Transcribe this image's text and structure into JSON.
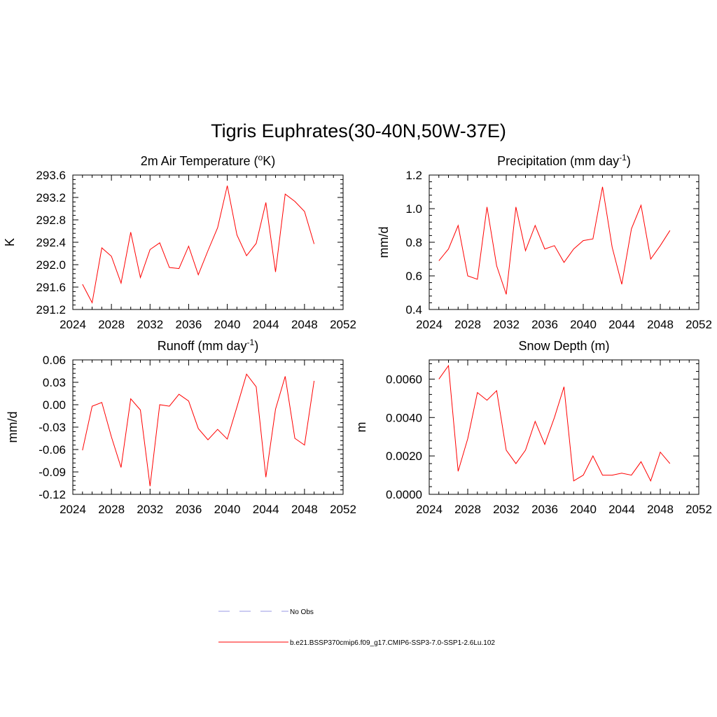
{
  "title": "Tigris Euphrates(30-40N,50W-37E)",
  "legend": [
    {
      "label": "No Obs",
      "color": "#9a9ae6",
      "dash": true
    },
    {
      "label": "b.e21.BSSP370cmip6.f09_g17.CMIP6-SSP3-7.0-SSP1-2.6Lu.102",
      "color": "#ff0000",
      "dash": false
    }
  ],
  "chart_data": [
    {
      "type": "line",
      "title": {
        "pre": "2m Air Temperature (",
        "sup": "o",
        "post": "K)"
      },
      "ylabel": "K",
      "xlim": [
        2024,
        2052
      ],
      "ylim": [
        291.2,
        293.6
      ],
      "xticks": [
        "2024",
        "2028",
        "2032",
        "2036",
        "2040",
        "2044",
        "2048",
        "2052"
      ],
      "yticks": [
        "291.2",
        "291.6",
        "292.0",
        "292.4",
        "292.8",
        "293.2",
        "293.6"
      ],
      "series": [
        {
          "color": "#ff0000",
          "x": [
            2025,
            2026,
            2027,
            2028,
            2029,
            2030,
            2031,
            2032,
            2033,
            2034,
            2035,
            2036,
            2037,
            2038,
            2039,
            2040,
            2041,
            2042,
            2043,
            2044,
            2045,
            2046,
            2047,
            2048,
            2049
          ],
          "y": [
            291.65,
            291.32,
            292.3,
            292.15,
            291.67,
            292.58,
            291.77,
            292.27,
            292.39,
            291.95,
            291.93,
            292.33,
            291.82,
            292.25,
            292.66,
            293.41,
            292.53,
            292.16,
            292.38,
            293.11,
            291.87,
            293.26,
            293.13,
            292.95,
            292.37
          ]
        }
      ]
    },
    {
      "type": "line",
      "title": {
        "pre": "Precipitation (mm day",
        "sup": "-1",
        "post": ")"
      },
      "ylabel": "mm/d",
      "xlim": [
        2024,
        2052
      ],
      "ylim": [
        0.4,
        1.2
      ],
      "xticks": [
        "2024",
        "2028",
        "2032",
        "2036",
        "2040",
        "2044",
        "2048",
        "2052"
      ],
      "yticks": [
        "0.4",
        "0.6",
        "0.8",
        "1.0",
        "1.2"
      ],
      "series": [
        {
          "color": "#ff0000",
          "x": [
            2025,
            2026,
            2027,
            2028,
            2029,
            2030,
            2031,
            2032,
            2033,
            2034,
            2035,
            2036,
            2037,
            2038,
            2039,
            2040,
            2041,
            2042,
            2043,
            2044,
            2045,
            2046,
            2047,
            2048,
            2049
          ],
          "y": [
            0.69,
            0.76,
            0.9,
            0.6,
            0.58,
            1.01,
            0.66,
            0.49,
            1.01,
            0.75,
            0.9,
            0.76,
            0.78,
            0.68,
            0.76,
            0.81,
            0.82,
            1.13,
            0.77,
            0.55,
            0.88,
            1.02,
            0.7,
            0.78,
            0.87
          ]
        }
      ]
    },
    {
      "type": "line",
      "title": {
        "pre": "Runoff (mm day",
        "sup": "-1",
        "post": ")"
      },
      "ylabel": "mm/d",
      "xlim": [
        2024,
        2052
      ],
      "ylim": [
        -0.12,
        0.06
      ],
      "xticks": [
        "2024",
        "2028",
        "2032",
        "2036",
        "2040",
        "2044",
        "2048",
        "2052"
      ],
      "yticks": [
        "-0.12",
        "-0.09",
        "-0.06",
        "-0.03",
        "0.00",
        "0.03",
        "0.06"
      ],
      "series": [
        {
          "color": "#ff0000",
          "x": [
            2025,
            2026,
            2027,
            2028,
            2029,
            2030,
            2031,
            2032,
            2033,
            2034,
            2035,
            2036,
            2037,
            2038,
            2039,
            2040,
            2041,
            2042,
            2043,
            2044,
            2045,
            2046,
            2047,
            2048,
            2049
          ],
          "y": [
            -0.061,
            -0.002,
            0.003,
            -0.043,
            -0.084,
            0.008,
            -0.007,
            -0.109,
            0.0,
            -0.002,
            0.014,
            0.005,
            -0.032,
            -0.047,
            -0.033,
            -0.046,
            -0.003,
            0.041,
            0.024,
            -0.097,
            -0.006,
            0.038,
            -0.045,
            -0.054,
            0.032
          ]
        }
      ]
    },
    {
      "type": "line",
      "title": {
        "pre": "Snow Depth (m)",
        "sup": "",
        "post": ""
      },
      "ylabel": "m",
      "xlim": [
        2024,
        2052
      ],
      "ylim": [
        0,
        0.007
      ],
      "xticks": [
        "2024",
        "2028",
        "2032",
        "2036",
        "2040",
        "2044",
        "2048",
        "2052"
      ],
      "yticks": [
        "0.0000",
        "0.0020",
        "0.0040",
        "0.0060"
      ],
      "ytick_values": [
        0,
        0.002,
        0.004,
        0.006
      ],
      "series": [
        {
          "color": "#ff0000",
          "x": [
            2025,
            2026,
            2027,
            2028,
            2029,
            2030,
            2031,
            2032,
            2033,
            2034,
            2035,
            2036,
            2037,
            2038,
            2039,
            2040,
            2041,
            2042,
            2043,
            2044,
            2045,
            2046,
            2047,
            2048,
            2049
          ],
          "y": [
            0.006,
            0.0067,
            0.0012,
            0.0029,
            0.0053,
            0.0049,
            0.0054,
            0.0023,
            0.0016,
            0.0023,
            0.0038,
            0.0026,
            0.004,
            0.0056,
            0.0007,
            0.001,
            0.002,
            0.001,
            0.001,
            0.0011,
            0.001,
            0.0017,
            0.0007,
            0.0022,
            0.0016
          ]
        }
      ]
    }
  ]
}
